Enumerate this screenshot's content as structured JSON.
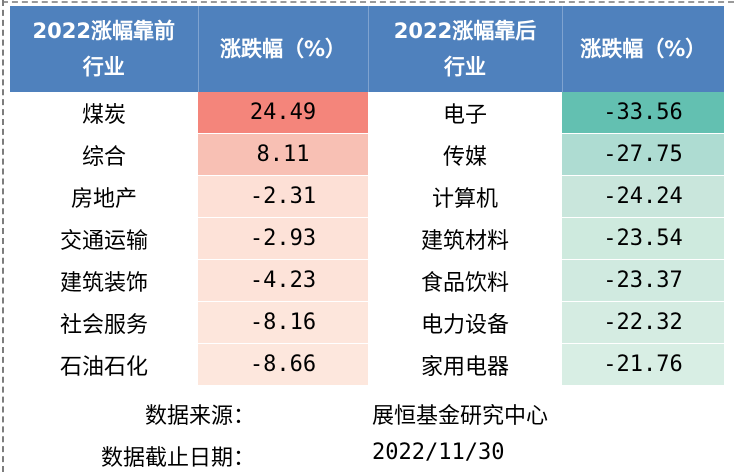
{
  "header": {
    "col1": [
      "2022涨幅靠前",
      "行业"
    ],
    "col2": "涨跌幅（%）",
    "col3": [
      "2022涨幅靠后",
      "行业"
    ],
    "col4": "涨跌幅（%）"
  },
  "colors": {
    "header_bg": "#4f81bd",
    "top_scale": [
      "#f4857b",
      "#f8c0b4",
      "#fde0d6",
      "#fde2d8",
      "#fde3d9",
      "#fde6dc",
      "#fde7dd"
    ],
    "bottom_scale": [
      "#63c0b1",
      "#aedcd2",
      "#c9e6dc",
      "#ceeade",
      "#d0eae0",
      "#d5ece2",
      "#d8eee4"
    ]
  },
  "rows": [
    {
      "top_industry": "煤炭",
      "top_change": "24.49",
      "bottom_industry": "电子",
      "bottom_change": "-33.56"
    },
    {
      "top_industry": "综合",
      "top_change": "8.11",
      "bottom_industry": "传媒",
      "bottom_change": "-27.75"
    },
    {
      "top_industry": "房地产",
      "top_change": "-2.31",
      "bottom_industry": "计算机",
      "bottom_change": "-24.24"
    },
    {
      "top_industry": "交通运输",
      "top_change": "-2.93",
      "bottom_industry": "建筑材料",
      "bottom_change": "-23.54"
    },
    {
      "top_industry": "建筑装饰",
      "top_change": "-4.23",
      "bottom_industry": "食品饮料",
      "bottom_change": "-23.37"
    },
    {
      "top_industry": "社会服务",
      "top_change": "-8.16",
      "bottom_industry": "电力设备",
      "bottom_change": "-22.32"
    },
    {
      "top_industry": "石油石化",
      "top_change": "-8.66",
      "bottom_industry": "家用电器",
      "bottom_change": "-21.76"
    }
  ],
  "footer": {
    "source_label": "数据来源：",
    "source_value": "展恒基金研究中心",
    "date_label": "数据截止日期：",
    "date_value": "2022/11/30"
  }
}
